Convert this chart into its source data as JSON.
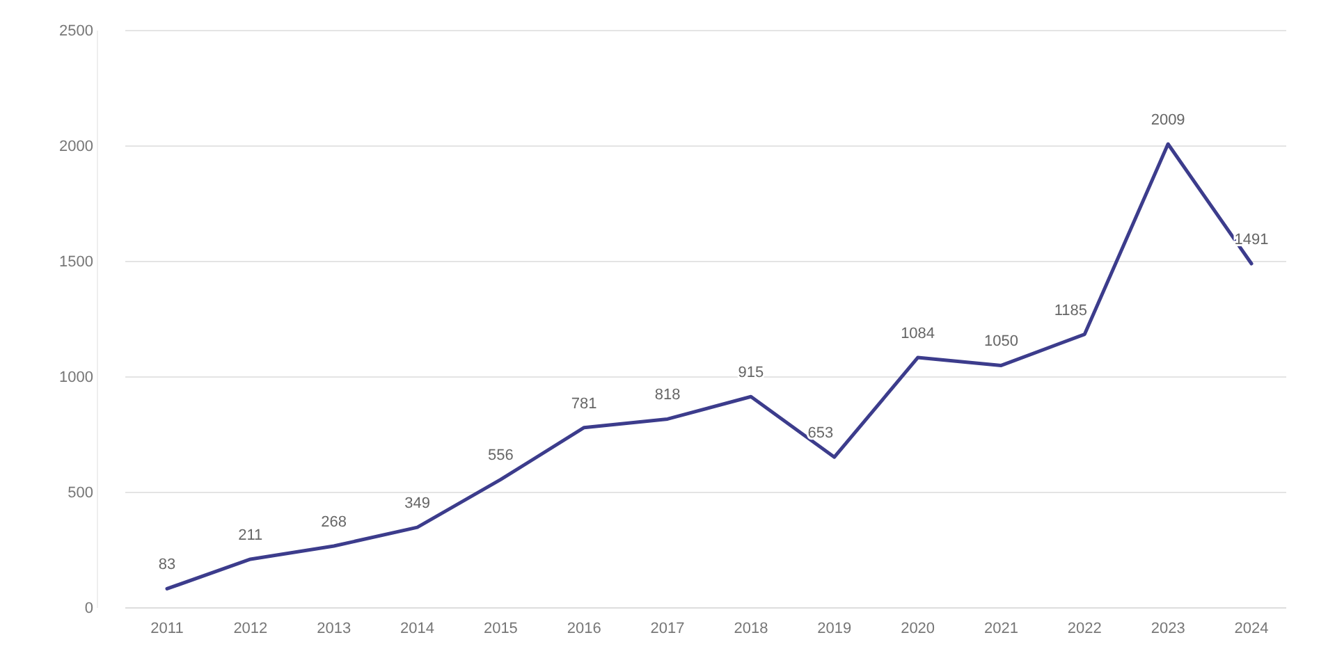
{
  "chart_data": {
    "type": "line",
    "categories": [
      "2011",
      "2012",
      "2013",
      "2014",
      "2015",
      "2016",
      "2017",
      "2018",
      "2019",
      "2020",
      "2021",
      "2022",
      "2023",
      "2024"
    ],
    "series": [
      {
        "color": "#3c3c8c",
        "values": [
          83,
          211,
          268,
          349,
          556,
          781,
          818,
          915,
          653,
          1084,
          1050,
          1185,
          2009,
          1491
        ]
      }
    ],
    "ylim": [
      0,
      2500
    ],
    "yticks": [
      0,
      500,
      1000,
      1500,
      2000,
      2500
    ],
    "grid": "y",
    "data_labels": true,
    "marker": "none",
    "line_style": "solid"
  }
}
